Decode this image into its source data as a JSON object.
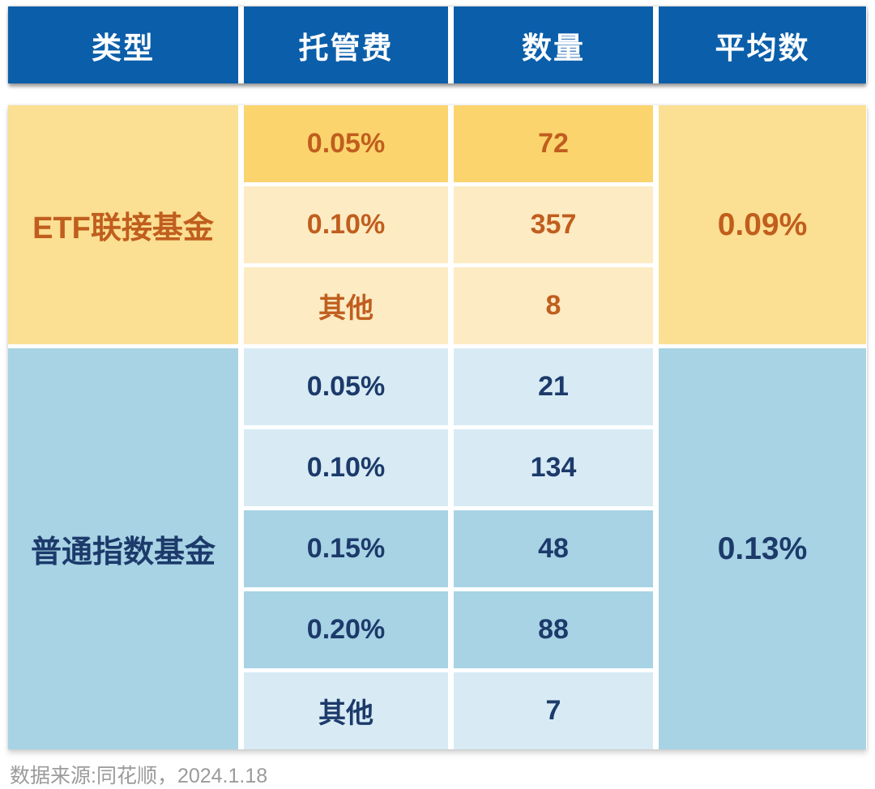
{
  "header": {
    "columns": [
      "类型",
      "托管费",
      "数量",
      "平均数"
    ]
  },
  "groups": [
    {
      "type": "ETF联接基金",
      "average": "0.09%",
      "rows": [
        {
          "fee": "0.05%",
          "count": "72",
          "variant": "gold"
        },
        {
          "fee": "0.10%",
          "count": "357",
          "variant": "cream"
        },
        {
          "fee": "其他",
          "count": "8",
          "variant": "cream"
        }
      ]
    },
    {
      "type": "普通指数基金",
      "average": "0.13%",
      "rows": [
        {
          "fee": "0.05%",
          "count": "21",
          "variant": "light"
        },
        {
          "fee": "0.10%",
          "count": "134",
          "variant": "light"
        },
        {
          "fee": "0.15%",
          "count": "48",
          "variant": "medium"
        },
        {
          "fee": "0.20%",
          "count": "88",
          "variant": "medium"
        },
        {
          "fee": "其他",
          "count": "7",
          "variant": "light"
        }
      ]
    }
  ],
  "footer": {
    "source": "数据来源:同花顺，2024.1.18"
  },
  "colors": {
    "header_blue": "#0B5EA9",
    "header_text": "#FFFFFF",
    "yellow_label": "#FBDF92",
    "yellow_gold_row": "#FBD46E",
    "yellow_cream_row": "#FDEBC3",
    "yellow_text": "#C05E1E",
    "blue_label": "#A7D3E5",
    "blue_light_row": "#D8EBF5",
    "blue_medium_row": "#A7D3E5",
    "blue_text": "#1C3A6A",
    "footer_text": "#9B9B9B"
  },
  "chart_data": {
    "type": "table",
    "title": "",
    "columns": [
      "类型",
      "托管费",
      "数量",
      "平均数"
    ],
    "rows": [
      [
        "ETF联接基金",
        "0.05%",
        72,
        "0.09%"
      ],
      [
        "ETF联接基金",
        "0.10%",
        357,
        "0.09%"
      ],
      [
        "ETF联接基金",
        "其他",
        8,
        "0.09%"
      ],
      [
        "普通指数基金",
        "0.05%",
        21,
        "0.13%"
      ],
      [
        "普通指数基金",
        "0.10%",
        134,
        "0.13%"
      ],
      [
        "普通指数基金",
        "0.15%",
        48,
        "0.13%"
      ],
      [
        "普通指数基金",
        "0.20%",
        88,
        "0.13%"
      ],
      [
        "普通指数基金",
        "其他",
        7,
        "0.13%"
      ]
    ],
    "annotations": [
      "数据来源:同花顺，2024.1.18"
    ]
  }
}
